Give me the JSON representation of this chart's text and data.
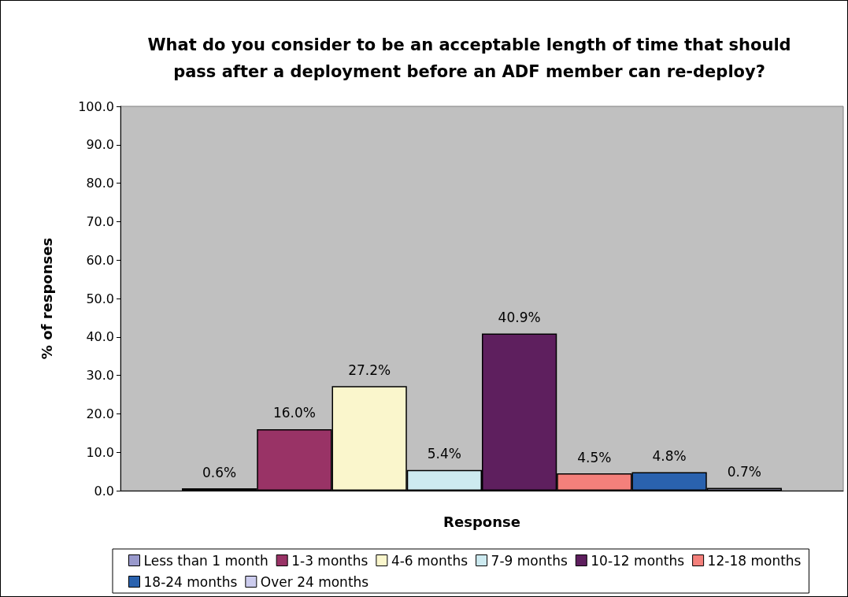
{
  "chart_data": {
    "type": "bar",
    "title": "What do you consider to be an acceptable length of time that should\npass after a deployment before an ADF member can re-deploy?",
    "xlabel": "Response",
    "ylabel": "% of responses",
    "categories": [
      null
    ],
    "series": [
      {
        "name": "Less than 1 month",
        "color": "#9999cc",
        "values": [
          0.6
        ],
        "value_labels": [
          "0.6%"
        ]
      },
      {
        "name": "1-3 months",
        "color": "#993366",
        "values": [
          16.0
        ],
        "value_labels": [
          "16.0%"
        ]
      },
      {
        "name": "4-6 months",
        "color": "#faf6cc",
        "values": [
          27.2
        ],
        "value_labels": [
          "27.2%"
        ]
      },
      {
        "name": "7-9 months",
        "color": "#cdeaf0",
        "values": [
          5.4
        ],
        "value_labels": [
          "5.4%"
        ]
      },
      {
        "name": "10-12 months",
        "color": "#5e1f5e",
        "values": [
          40.9
        ],
        "value_labels": [
          "40.9%"
        ]
      },
      {
        "name": "12-18 months",
        "color": "#f4807b",
        "values": [
          4.5
        ],
        "value_labels": [
          "4.5%"
        ]
      },
      {
        "name": "18-24 months",
        "color": "#2a62ae",
        "values": [
          4.8
        ],
        "value_labels": [
          "4.8%"
        ]
      },
      {
        "name": "Over 24 months",
        "color": "#ccccee",
        "values": [
          0.7
        ],
        "value_labels": [
          "0.7%"
        ]
      }
    ],
    "ylim": [
      0,
      100
    ],
    "yticks": [
      {
        "value": 0,
        "label": "0.0"
      },
      {
        "value": 10,
        "label": "10.0"
      },
      {
        "value": 20,
        "label": "20.0"
      },
      {
        "value": 30,
        "label": "30.0"
      },
      {
        "value": 40,
        "label": "40.0"
      },
      {
        "value": 50,
        "label": "50.0"
      },
      {
        "value": 60,
        "label": "60.0"
      },
      {
        "value": 70,
        "label": "70.0"
      },
      {
        "value": 80,
        "label": "80.0"
      },
      {
        "value": 90,
        "label": "90.0"
      },
      {
        "value": 100,
        "label": "100.0"
      }
    ],
    "grid": false,
    "legend": "bottom"
  }
}
